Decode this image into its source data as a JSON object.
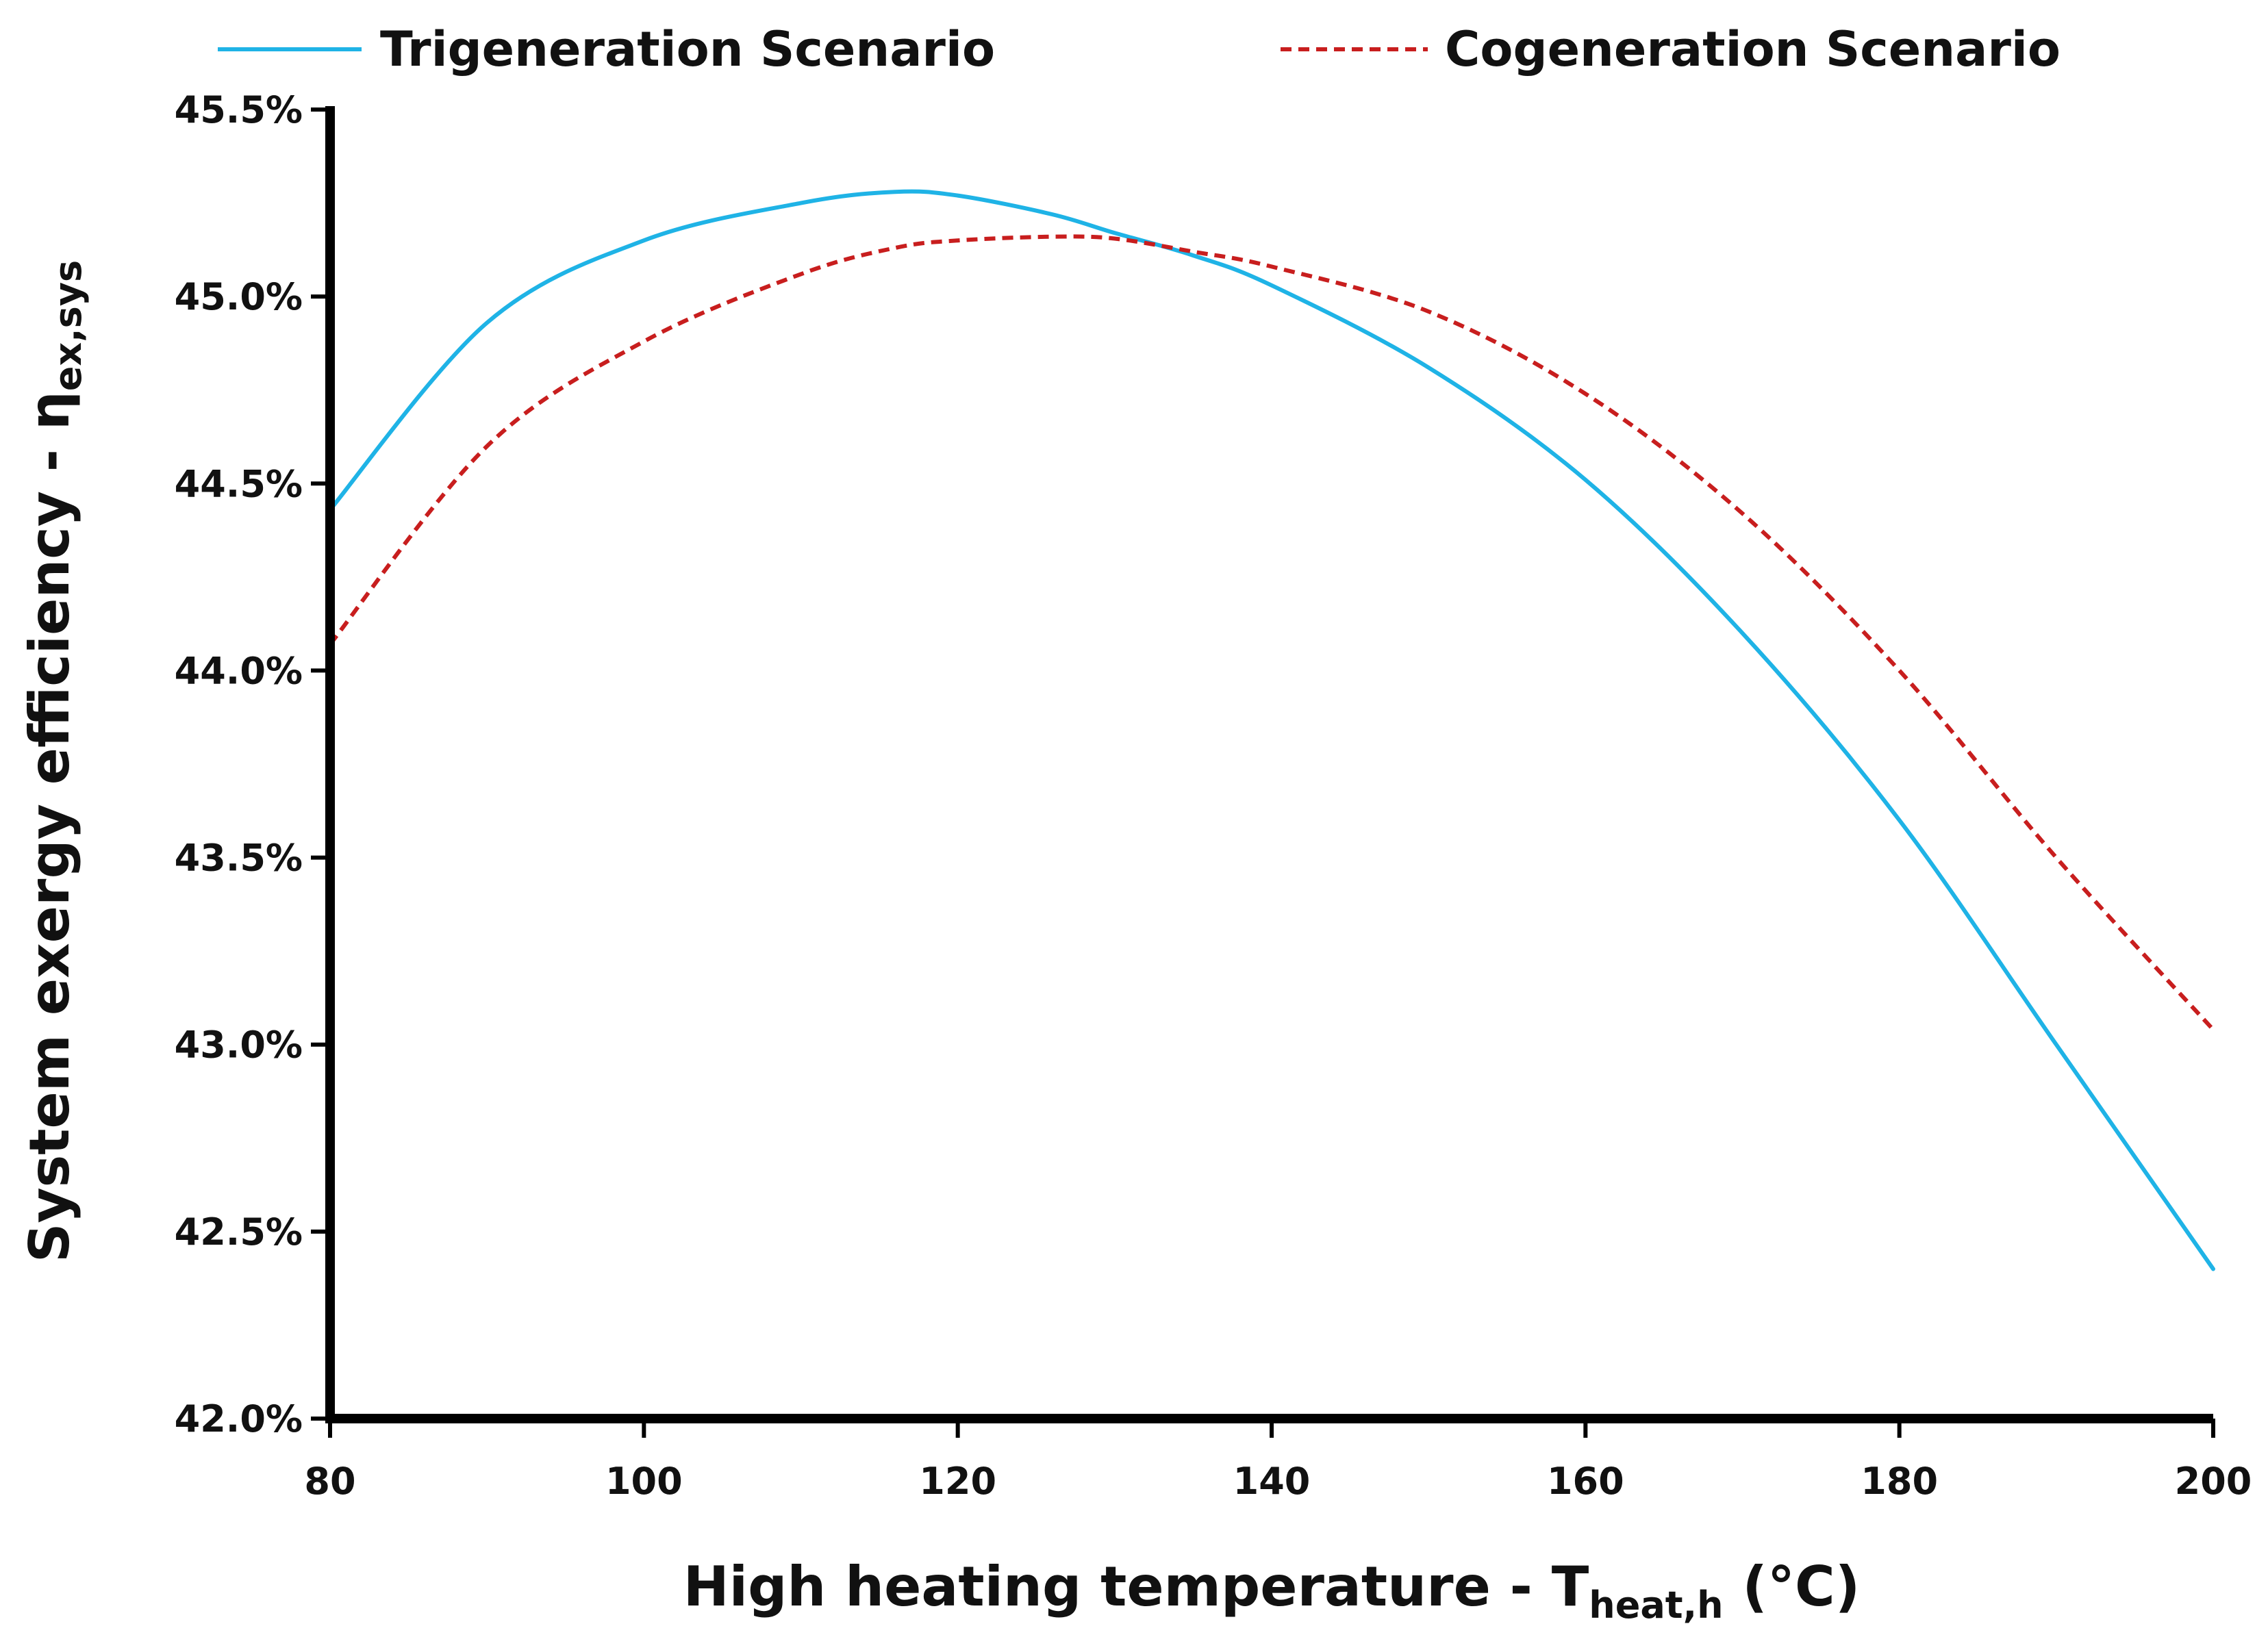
{
  "chart_data": {
    "type": "line",
    "title": "",
    "xlabel": {
      "main": "High heating temperature - T",
      "sub": "heat,h",
      "suffix": " (°C)"
    },
    "ylabel": {
      "main": "System exergy efficiency - η",
      "sub": "ex,sys"
    },
    "xlim": [
      80,
      200
    ],
    "ylim": [
      42.0,
      45.5
    ],
    "x_ticks": [
      80,
      100,
      120,
      140,
      160,
      180,
      200
    ],
    "y_ticks": [
      42.0,
      42.5,
      43.0,
      43.5,
      44.0,
      44.5,
      45.0,
      45.5
    ],
    "y_tick_labels": [
      "42.0%",
      "42.5%",
      "43.0%",
      "43.5%",
      "44.0%",
      "44.5%",
      "45.0%",
      "45.5%"
    ],
    "x_tick_labels": [
      "80",
      "100",
      "120",
      "140",
      "160",
      "180",
      "200"
    ],
    "grid": false,
    "legend_position": "top",
    "x": [
      80,
      90,
      100,
      110,
      116,
      120,
      126,
      130,
      135,
      140,
      150,
      160,
      170,
      180,
      190,
      200
    ],
    "series": [
      {
        "name": "Trigeneration Scenario",
        "color": "#1fb3e6",
        "dash": "solid",
        "values": [
          44.43,
          44.93,
          45.15,
          45.25,
          45.28,
          45.27,
          45.22,
          45.17,
          45.11,
          45.03,
          44.81,
          44.51,
          44.1,
          43.6,
          43.0,
          42.4
        ]
      },
      {
        "name": "Cogeneration Scenario",
        "color": "#c81e1e",
        "dash": "dashed",
        "values": [
          44.07,
          44.6,
          44.88,
          45.06,
          45.13,
          45.15,
          45.16,
          45.155,
          45.12,
          45.08,
          44.96,
          44.74,
          44.42,
          44.0,
          43.5,
          43.04
        ]
      }
    ]
  }
}
